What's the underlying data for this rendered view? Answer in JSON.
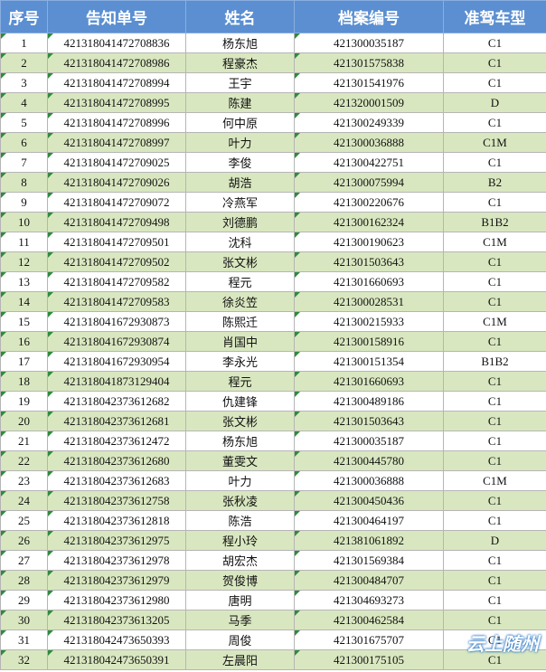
{
  "table": {
    "header": [
      "序号",
      "告知单号",
      "姓名",
      "档案编号",
      "准驾车型"
    ],
    "rows": [
      [
        "1",
        "421318041472708836",
        "杨东旭",
        "421300035187",
        "C1"
      ],
      [
        "2",
        "421318041472708986",
        "程豪杰",
        "421301575838",
        "C1"
      ],
      [
        "3",
        "421318041472708994",
        "王宇",
        "421301541976",
        "C1"
      ],
      [
        "4",
        "421318041472708995",
        "陈建",
        "421320001509",
        "D"
      ],
      [
        "5",
        "421318041472708996",
        "何中原",
        "421300249339",
        "C1"
      ],
      [
        "6",
        "421318041472708997",
        "叶力",
        "421300036888",
        "C1M"
      ],
      [
        "7",
        "421318041472709025",
        "李俊",
        "421300422751",
        "C1"
      ],
      [
        "8",
        "421318041472709026",
        "胡浩",
        "421300075994",
        "B2"
      ],
      [
        "9",
        "421318041472709072",
        "冷燕军",
        "421300220676",
        "C1"
      ],
      [
        "10",
        "421318041472709498",
        "刘德鹏",
        "421300162324",
        "B1B2"
      ],
      [
        "11",
        "421318041472709501",
        "沈科",
        "421300190623",
        "C1M"
      ],
      [
        "12",
        "421318041472709502",
        "张文彬",
        "421301503643",
        "C1"
      ],
      [
        "13",
        "421318041472709582",
        "程元",
        "421301660693",
        "C1"
      ],
      [
        "14",
        "421318041472709583",
        "徐炎笠",
        "421300028531",
        "C1"
      ],
      [
        "15",
        "421318041672930873",
        "陈熙迁",
        "421300215933",
        "C1M"
      ],
      [
        "16",
        "421318041672930874",
        "肖国中",
        "421300158916",
        "C1"
      ],
      [
        "17",
        "421318041672930954",
        "李永光",
        "421300151354",
        "B1B2"
      ],
      [
        "18",
        "421318041873129404",
        "程元",
        "421301660693",
        "C1"
      ],
      [
        "19",
        "421318042373612682",
        "仇建锋",
        "421300489186",
        "C1"
      ],
      [
        "20",
        "421318042373612681",
        "张文彬",
        "421301503643",
        "C1"
      ],
      [
        "21",
        "421318042373612472",
        "杨东旭",
        "421300035187",
        "C1"
      ],
      [
        "22",
        "421318042373612680",
        "董雯文",
        "421300445780",
        "C1"
      ],
      [
        "23",
        "421318042373612683",
        "叶力",
        "421300036888",
        "C1M"
      ],
      [
        "24",
        "421318042373612758",
        "张秋凌",
        "421300450436",
        "C1"
      ],
      [
        "25",
        "421318042373612818",
        "陈浩",
        "421300464197",
        "C1"
      ],
      [
        "26",
        "421318042373612975",
        "程小玲",
        "421381061892",
        "D"
      ],
      [
        "27",
        "421318042373612978",
        "胡宏杰",
        "421301569384",
        "C1"
      ],
      [
        "28",
        "421318042373612979",
        "贺俊博",
        "421300484707",
        "C1"
      ],
      [
        "29",
        "421318042373612980",
        "唐明",
        "421304693273",
        "C1"
      ],
      [
        "30",
        "421318042373613205",
        "马季",
        "421300462584",
        "C1"
      ],
      [
        "31",
        "421318042473650393",
        "周俊",
        "421301675707",
        "C1"
      ],
      [
        "32",
        "421318042473650391",
        "左晨阳",
        "421300175105",
        "C1"
      ]
    ]
  },
  "watermark": "云上随州"
}
